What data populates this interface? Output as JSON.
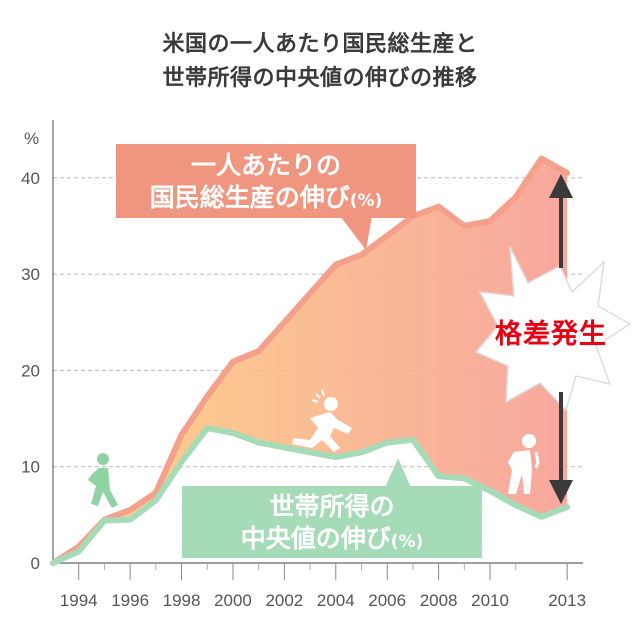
{
  "title_line1": "米国の一人あたり国民総生産と",
  "title_line2": "世帯所得の中央値の伸びの推移",
  "chart_data": {
    "type": "area",
    "title": "米国の一人あたり国民総生産と世帯所得の中央値の伸びの推移",
    "ylabel": "%",
    "ylim": [
      0,
      45
    ],
    "yticks": [
      0,
      10,
      20,
      30,
      40
    ],
    "xticks": [
      "1994",
      "1996",
      "1998",
      "2000",
      "2002",
      "2004",
      "2006",
      "2008",
      "2010",
      "2013"
    ],
    "xlim": [
      1993,
      2013.5
    ],
    "grid": true,
    "series": [
      {
        "name": "一人あたりの国民総生産の伸び(%)",
        "x": [
          1993,
          1994,
          1995,
          1996,
          1997,
          1998,
          1999,
          2000,
          2001,
          2002,
          2003,
          2004,
          2005,
          2006,
          2007,
          2008,
          2009,
          2010,
          2011,
          2012,
          2013
        ],
        "values": [
          0,
          1.7,
          4.5,
          5.5,
          7.3,
          13.3,
          17.3,
          20.9,
          22.0,
          25.0,
          28.0,
          31.0,
          32.0,
          34.0,
          36.0,
          37.0,
          35.0,
          35.5,
          38.0,
          42.0,
          40.5
        ]
      },
      {
        "name": "世帯所得の中央値の伸び(%)",
        "x": [
          1993,
          1994,
          1995,
          1996,
          1997,
          1998,
          1999,
          2000,
          2001,
          2002,
          2003,
          2004,
          2005,
          2006,
          2007,
          2008,
          2009,
          2010,
          2011,
          2012,
          2013
        ],
        "values": [
          0,
          1.2,
          4.4,
          4.5,
          6.5,
          10.5,
          14.0,
          13.5,
          12.5,
          12.0,
          11.5,
          11.0,
          11.5,
          12.5,
          12.8,
          9.0,
          8.8,
          7.5,
          6.0,
          4.8,
          5.8
        ]
      }
    ]
  },
  "labels": {
    "gdp_line1": "一人あたりの",
    "gdp_line2": "国民総生産の伸び",
    "gdp_unit": "(%)",
    "median_line1": "世帯所得の",
    "median_line2": "中央値の伸び",
    "median_unit": "(%)",
    "gap": "格差発生"
  },
  "colors": {
    "gdp_line": "#f4a08a",
    "median_line": "#a5dcb7",
    "fill_left": "#fdd07f",
    "fill_right": "#f7a096",
    "gap_text": "#e60012",
    "arrow": "#3a3a3a"
  },
  "icons": [
    "walking-person-icon",
    "running-person-icon",
    "tired-person-icon",
    "double-arrow-icon",
    "burst-icon"
  ]
}
